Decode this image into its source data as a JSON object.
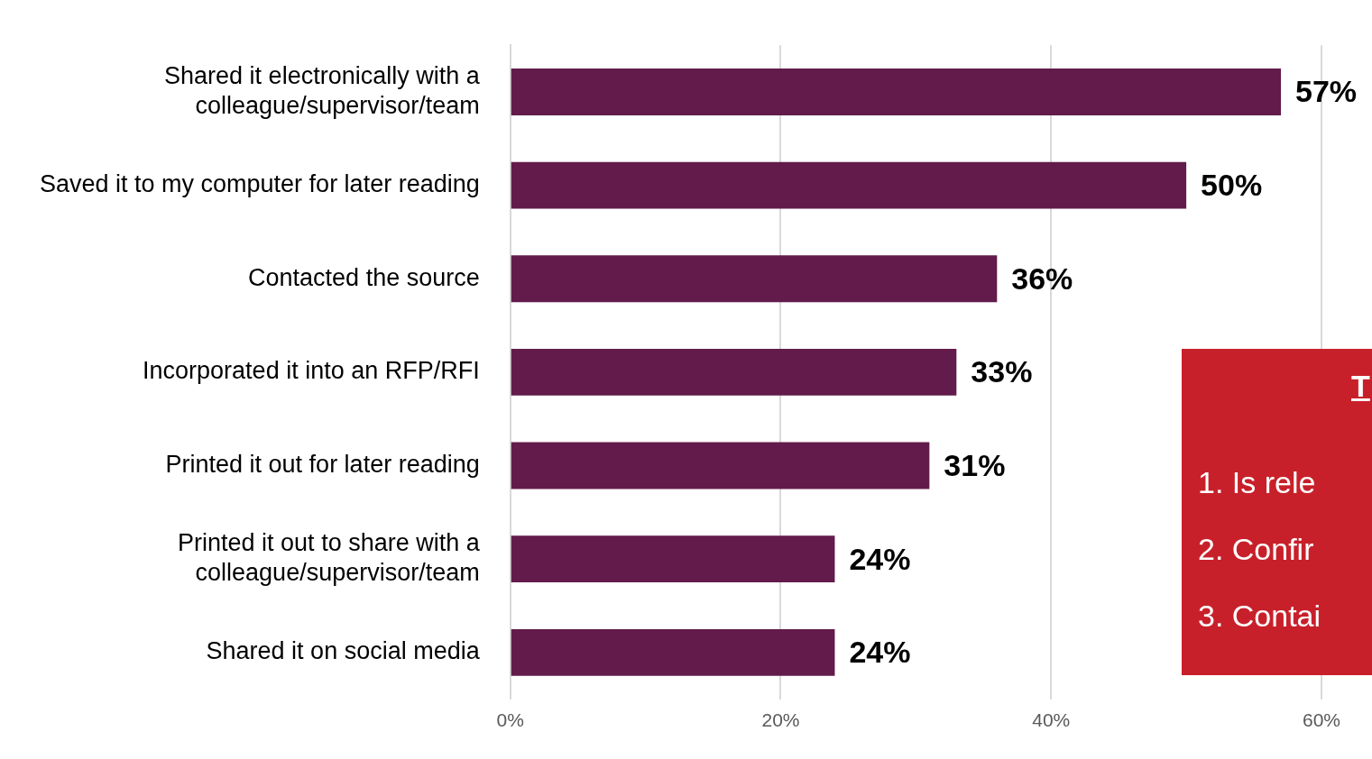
{
  "chart_data": {
    "type": "bar",
    "orientation": "horizontal",
    "categories": [
      "Shared it electronically with a colleague/supervisor/team",
      "Saved it to my computer for later reading",
      "Contacted the source",
      "Incorporated it into an RFP/RFI",
      "Printed it out for later reading",
      "Printed it out to share with a colleague/supervisor/team",
      "Shared it on social media"
    ],
    "values": [
      57,
      50,
      36,
      33,
      31,
      24,
      24
    ],
    "value_labels": [
      "57%",
      "50%",
      "36%",
      "33%",
      "31%",
      "24%",
      "24%"
    ],
    "color": "#621b4a",
    "xlim": [
      0,
      60
    ],
    "xticks": [
      {
        "value": 0,
        "label": "0%"
      },
      {
        "value": 20,
        "label": "20%"
      },
      {
        "value": 40,
        "label": "40%"
      },
      {
        "value": 60,
        "label": "60%"
      }
    ],
    "grid": "x",
    "legend": false,
    "annotations": [
      "T",
      "1. Is rele",
      "2. Confir",
      "3. Contai"
    ]
  }
}
